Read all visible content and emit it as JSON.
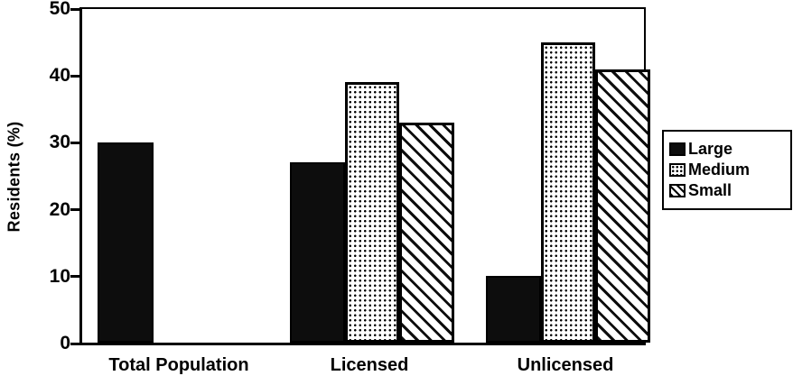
{
  "colors": {
    "ink": "#000000",
    "paper": "#ffffff",
    "bar_fill": "#0d0d0d"
  },
  "chart_data": {
    "type": "bar",
    "title": "",
    "categories": [
      "Total Population",
      "Licensed",
      "Unlicensed"
    ],
    "series": [
      {
        "name": "Large",
        "pattern": "solid",
        "values": [
          30,
          27,
          10
        ]
      },
      {
        "name": "Medium",
        "pattern": "dots",
        "values": [
          null,
          39,
          45
        ]
      },
      {
        "name": "Small",
        "pattern": "hatch",
        "values": [
          null,
          33,
          41
        ]
      }
    ],
    "xlabel": "",
    "ylabel": "Residents (%)",
    "yticks": [
      0,
      10,
      20,
      30,
      40,
      50
    ],
    "ylim": [
      0,
      50
    ],
    "grid": false,
    "legend_position": "right"
  }
}
